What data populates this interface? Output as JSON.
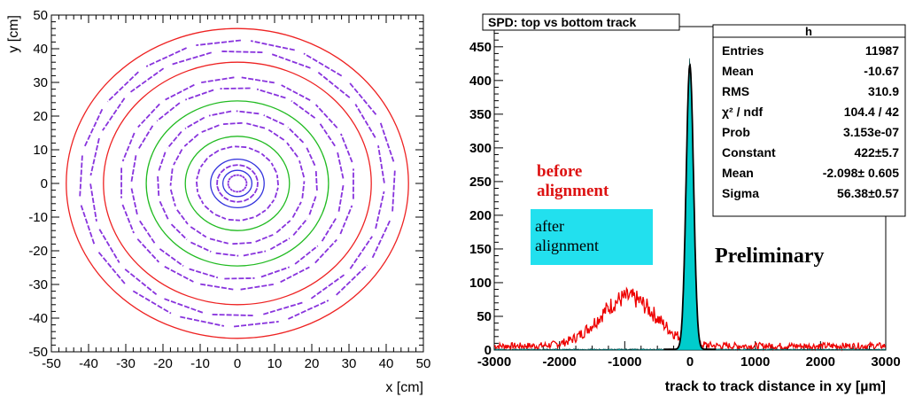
{
  "chart_data": [
    {
      "type": "scatter",
      "xlabel": "x [cm]",
      "ylabel": "y [cm]",
      "xlim": [
        -50,
        50
      ],
      "ylim": [
        -50,
        50
      ],
      "x_ticks": [
        "-50",
        "-40",
        "-30",
        "-20",
        "-10",
        "0",
        "10",
        "20",
        "30",
        "40",
        "50"
      ],
      "y_ticks": [
        "-50",
        "-40",
        "-30",
        "-20",
        "-10",
        "0",
        "10",
        "20",
        "30",
        "40",
        "50"
      ],
      "circles": [
        {
          "radius": 3.9,
          "color": "#3333dd"
        },
        {
          "radius": 7.2,
          "color": "#3333dd"
        },
        {
          "radius": 14.0,
          "color": "#22bb22"
        },
        {
          "radius": 24.5,
          "color": "#22bb22"
        },
        {
          "radius": 36.0,
          "color": "#ee2222"
        },
        {
          "radius": 46.0,
          "color": "#ee2222"
        }
      ],
      "hit_rings": [
        {
          "radius": 2.5,
          "color": "#8833dd"
        },
        {
          "radius": 5.5,
          "color": "#8833dd"
        },
        {
          "radius": 11.0,
          "color": "#8833dd"
        },
        {
          "radius": 18.0,
          "color": "#8833dd"
        },
        {
          "radius": 21.5,
          "color": "#8833dd"
        },
        {
          "radius": 28.5,
          "color": "#8833dd"
        },
        {
          "radius": 31.5,
          "color": "#8833dd"
        },
        {
          "radius": 39.5,
          "color": "#8833dd"
        },
        {
          "radius": 42.5,
          "color": "#8833dd"
        }
      ]
    },
    {
      "type": "area",
      "title": "SPD: top vs bottom track",
      "xlabel": "track to track distance in xy [µm]",
      "ylabel": "",
      "xlim": [
        -3000,
        3000
      ],
      "ylim": [
        0,
        480
      ],
      "x_ticks": [
        "-3000",
        "-2000",
        "-1000",
        "0",
        "1000",
        "2000",
        "3000"
      ],
      "y_ticks": [
        "0",
        "50",
        "100",
        "150",
        "200",
        "250",
        "300",
        "350",
        "400",
        "450"
      ],
      "series": [
        {
          "name": "before alignment",
          "color": "#ee0000",
          "shape": "gaussian",
          "mean": -950,
          "sigma": 430,
          "amplitude": 72,
          "baseline": 6
        },
        {
          "name": "after alignment",
          "color": "#00cccc",
          "shape": "gaussian",
          "mean": -2.098,
          "sigma": 56.38,
          "amplitude": 422,
          "baseline": 1
        }
      ],
      "stats_box": {
        "title": "h",
        "rows": [
          {
            "label": "Entries",
            "value": "11987"
          },
          {
            "label": "Mean",
            "value": "-10.67"
          },
          {
            "label": "RMS",
            "value": "310.9"
          },
          {
            "label": "χ² / ndf",
            "value": "104.4 / 42"
          },
          {
            "label": "Prob",
            "value": "3.153e-07"
          },
          {
            "label": "Constant",
            "value": "422±5.7"
          },
          {
            "label": "Mean",
            "value": "-2.098± 0.605"
          },
          {
            "label": "Sigma",
            "value": "56.38±0.57"
          }
        ]
      },
      "annotations": {
        "before": [
          "before",
          "alignment"
        ],
        "after": [
          "after",
          "alignment"
        ],
        "preliminary": "Preliminary"
      },
      "colors": {
        "before": "#dd1111",
        "after_box": "#22e0ee",
        "fit": "#000000"
      }
    }
  ]
}
